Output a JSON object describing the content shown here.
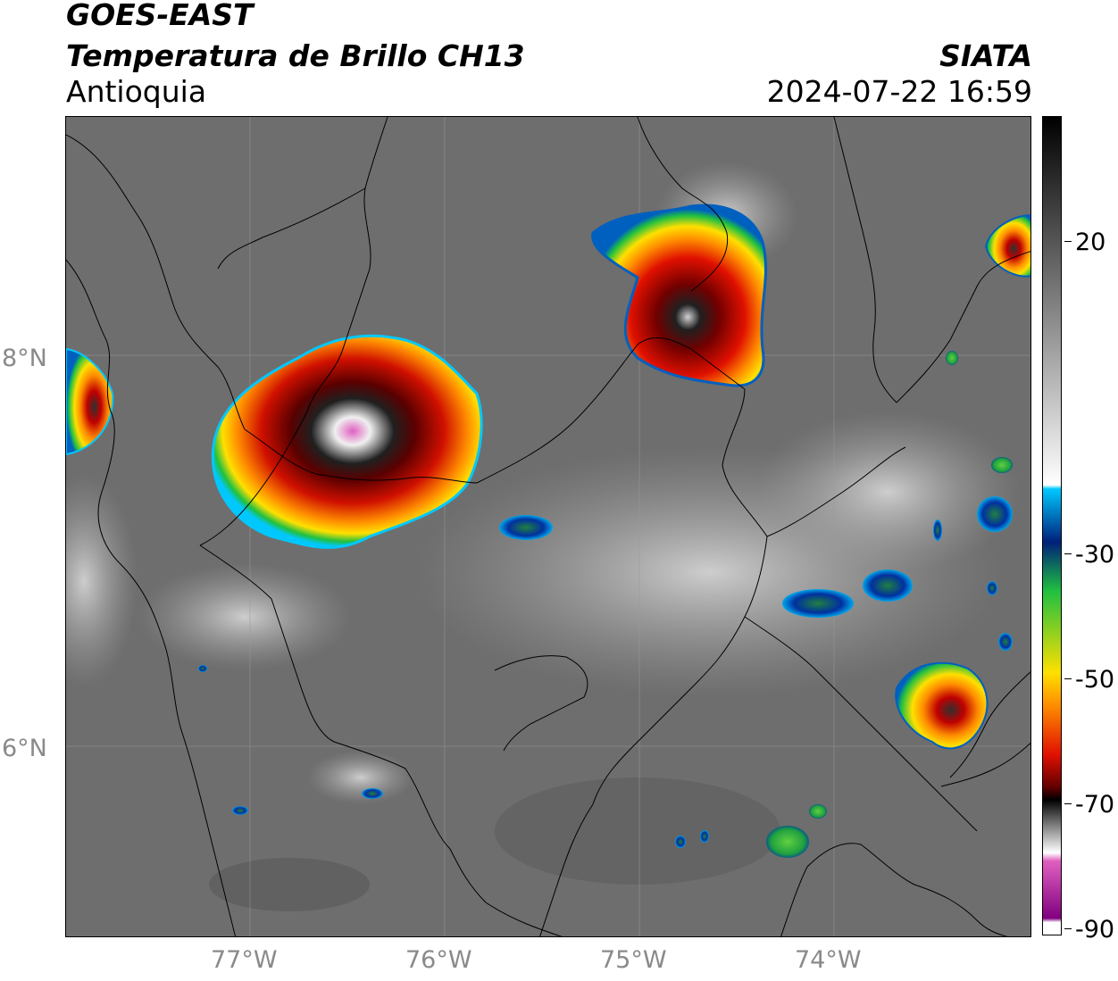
{
  "header": {
    "satellite": "GOES-EAST",
    "product": "Temperatura de Brillo CH13",
    "region": "Antioquia",
    "organization": "SIATA",
    "datetime": "2024-07-22 16:59"
  },
  "map": {
    "lat_labels": [
      "8°N",
      "6°N"
    ],
    "lon_labels": [
      "77°W",
      "76°W",
      "75°W",
      "74°W"
    ],
    "background_color": "#6e6e6e",
    "border_color": "#000000"
  },
  "colorbar": {
    "tick_labels": [
      "20",
      "-30",
      "-50",
      "-70",
      "-90"
    ],
    "colors": {
      "warm_top": "#000000",
      "gray": "#8c8c8c",
      "white": "#ffffff",
      "cyan": "#00c8ff",
      "blue": "#00207a",
      "green": "#20c040",
      "yellow": "#ffe000",
      "orange": "#ff8c00",
      "red": "#e01000",
      "dark_red": "#600000",
      "black": "#000000",
      "pink": "#e060c0",
      "purple": "#800080"
    }
  }
}
